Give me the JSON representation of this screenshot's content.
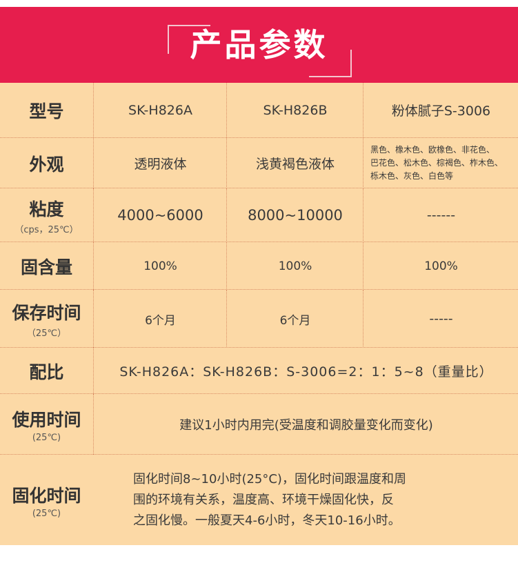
{
  "title": "产品参数",
  "colors": {
    "header": "#e61e4d",
    "table_bg": "#fcd9a6",
    "divider": "#d98c64"
  },
  "rows": [
    {
      "label": "型号",
      "cells": [
        "SK-H826A",
        "SK-H826B",
        "粉体腻子S-3006"
      ]
    },
    {
      "label": "外观",
      "cells": [
        "透明液体",
        "浅黄褐色液体"
      ],
      "colors_list": [
        "黑色、橡木色、欧橡色、非花色、",
        "巴花色、松木色、棕褐色、柞木色、",
        "栎木色、灰色、白色等"
      ]
    },
    {
      "label": "粘度",
      "sub": "（cps，25℃）",
      "cells": [
        "4000~6000",
        "8000~10000",
        "------"
      ]
    },
    {
      "label": "固含量",
      "cells": [
        "100%",
        "100%",
        "100%"
      ]
    },
    {
      "label": "保存时间",
      "sub": "（25℃）",
      "cells": [
        "6个月",
        "6个月",
        "-----"
      ]
    },
    {
      "label": "配比",
      "wide": "SK-H826A：SK-H826B：S-3006=2：1：5~8（重量比）"
    },
    {
      "label": "使用时间",
      "sub": "(25℃)",
      "wide": "建议1小时内用完(受温度和调胶量变化而变化)"
    },
    {
      "label": "固化时间",
      "sub": "(25℃)",
      "lines": [
        "固化时间8~10小时(25°C)，固化时间跟温度和周",
        "围的环境有关系，温度高、环境干燥固化快，反",
        "之固化慢。一般夏天4-6小时，冬天10-16小时。"
      ]
    }
  ]
}
